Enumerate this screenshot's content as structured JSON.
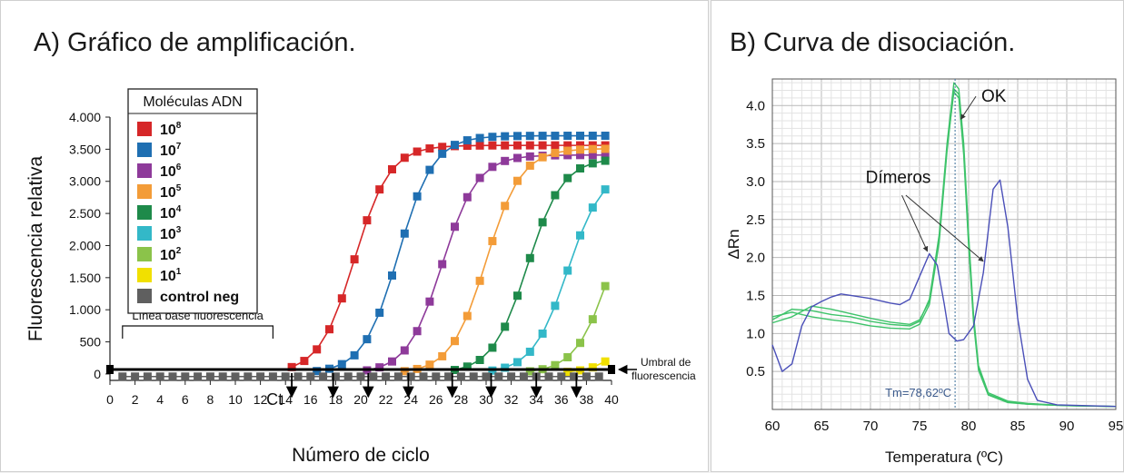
{
  "chart_data": [
    {
      "type": "line",
      "title": "A) Gráfico de amplificación.",
      "xlabel": "Número de ciclo",
      "ylabel": "Fluorescencia relativa",
      "xlim": [
        0,
        40
      ],
      "ylim": [
        -100,
        4000
      ],
      "xticks": [
        "0",
        "2",
        "4",
        "6",
        "8",
        "10",
        "12",
        "14",
        "16",
        "18",
        "20",
        "22",
        "24",
        "26",
        "28",
        "30",
        "32",
        "34",
        "36",
        "38",
        "40"
      ],
      "yticks": [
        {
          "v": 0,
          "label": "0"
        },
        {
          "v": 500,
          "label": "500"
        },
        {
          "v": 1000,
          "label": "1.000"
        },
        {
          "v": 1500,
          "label": "1.500"
        },
        {
          "v": 2000,
          "label": "2.000"
        },
        {
          "v": 2500,
          "label": "2.500"
        },
        {
          "v": 3000,
          "label": "3.000"
        },
        {
          "v": 3500,
          "label": "3.500"
        },
        {
          "v": 4000,
          "label": "4.000"
        }
      ],
      "legend": {
        "title": "Moléculas ADN",
        "placement": "top-left",
        "items": [
          {
            "base": "10",
            "exp": "8",
            "color": "#d62728"
          },
          {
            "base": "10",
            "exp": "7",
            "color": "#1f6fb2"
          },
          {
            "base": "10",
            "exp": "6",
            "color": "#8e3a9a"
          },
          {
            "base": "10",
            "exp": "5",
            "color": "#f39c38"
          },
          {
            "base": "10",
            "exp": "4",
            "color": "#1e8a4a"
          },
          {
            "base": "10",
            "exp": "3",
            "color": "#33b8c8"
          },
          {
            "base": "10",
            "exp": "2",
            "color": "#8bc34a"
          },
          {
            "base": "10",
            "exp": "1",
            "color": "#f1e000"
          },
          {
            "base": "control neg",
            "exp": "",
            "color": "#5f5f5f"
          }
        ]
      },
      "series": [
        {
          "name": "10^8",
          "color": "#d62728",
          "midpoint": 19.5,
          "plateau": 3550,
          "x_min": 14.5,
          "x_max": 39.5
        },
        {
          "name": "10^7",
          "color": "#1f6fb2",
          "midpoint": 23.0,
          "plateau": 3700,
          "x_min": 16.5,
          "x_max": 39.5
        },
        {
          "name": "10^6",
          "color": "#8e3a9a",
          "midpoint": 26.5,
          "plateau": 3400,
          "x_min": 20.5,
          "x_max": 39.5
        },
        {
          "name": "10^5",
          "color": "#f39c38",
          "midpoint": 30.0,
          "plateau": 3500,
          "x_min": 23.5,
          "x_max": 39.5
        },
        {
          "name": "10^4",
          "color": "#1e8a4a",
          "midpoint": 33.3,
          "plateau": 3350,
          "x_min": 27.5,
          "x_max": 39.5
        },
        {
          "name": "10^3",
          "color": "#33b8c8",
          "midpoint": 36.5,
          "plateau": 3200,
          "x_min": 30.5,
          "x_max": 39.5
        },
        {
          "name": "10^2",
          "color": "#8bc34a",
          "midpoint": 40.0,
          "plateau": 3300,
          "x_min": 33.5,
          "x_max": 39.5
        },
        {
          "name": "10^1",
          "color": "#f1e000",
          "midpoint": 43.5,
          "plateau": 3400,
          "x_min": 36.5,
          "x_max": 39.5
        },
        {
          "name": "control neg",
          "color": "#5f5f5f",
          "constant": -40,
          "x_min": 1,
          "x_max": 39.5
        }
      ],
      "threshold": {
        "value": 70,
        "label_line1": "Umbral de",
        "label_line2": "fluorescencia"
      },
      "baseline": {
        "x_start": 1,
        "x_end": 13,
        "label": "Línea base fluorescencia"
      },
      "ct_label": "Ct",
      "ct_values": [
        14.5,
        17.8,
        20.6,
        23.8,
        27.3,
        30.4,
        34.0,
        37.2
      ]
    },
    {
      "type": "line",
      "title": "B) Curva de disociación.",
      "xlabel": "Temperatura (ºC)",
      "ylabel": "ΔRn",
      "xlim": [
        60,
        95
      ],
      "ylim": [
        0,
        4.35
      ],
      "xticks": [
        "60",
        "65",
        "70",
        "75",
        "80",
        "85",
        "90",
        "95"
      ],
      "yticks": [
        {
          "v": 0.5,
          "label": "0.5"
        },
        {
          "v": 1.0,
          "label": "1.0"
        },
        {
          "v": 1.5,
          "label": "1.5"
        },
        {
          "v": 2.0,
          "label": "2.0"
        },
        {
          "v": 2.5,
          "label": "2.5"
        },
        {
          "v": 3.0,
          "label": "3.0"
        },
        {
          "v": 3.5,
          "label": "3.5"
        },
        {
          "v": 4.0,
          "label": "4.0"
        }
      ],
      "grid": true,
      "tm_line": 78.62,
      "tm_label": "Tm=78,62ºC",
      "annotations": [
        {
          "text": "OK",
          "x": 81.3,
          "y": 4.05
        },
        {
          "text": "Dímeros",
          "x": 69.5,
          "y": 2.98
        }
      ],
      "series": [
        {
          "name": "ok-1",
          "color": "#3ec36a",
          "points": [
            [
              60,
              1.22
            ],
            [
              62,
              1.28
            ],
            [
              64,
              1.22
            ],
            [
              66,
              1.18
            ],
            [
              68,
              1.15
            ],
            [
              70,
              1.1
            ],
            [
              72,
              1.07
            ],
            [
              74,
              1.06
            ],
            [
              75,
              1.12
            ],
            [
              76,
              1.38
            ],
            [
              77,
              2.2
            ],
            [
              77.8,
              3.4
            ],
            [
              78.5,
              4.22
            ],
            [
              79,
              4.15
            ],
            [
              79.5,
              3.4
            ],
            [
              80,
              2.2
            ],
            [
              80.5,
              1.2
            ],
            [
              81,
              0.55
            ],
            [
              82,
              0.2
            ],
            [
              84,
              0.1
            ],
            [
              86,
              0.07
            ],
            [
              90,
              0.05
            ],
            [
              95,
              0.04
            ]
          ]
        },
        {
          "name": "ok-2",
          "color": "#3ec36a",
          "points": [
            [
              60,
              1.18
            ],
            [
              62,
              1.32
            ],
            [
              64,
              1.3
            ],
            [
              66,
              1.25
            ],
            [
              68,
              1.22
            ],
            [
              70,
              1.16
            ],
            [
              72,
              1.12
            ],
            [
              74,
              1.1
            ],
            [
              75,
              1.16
            ],
            [
              76,
              1.45
            ],
            [
              77,
              2.3
            ],
            [
              77.8,
              3.5
            ],
            [
              78.5,
              4.3
            ],
            [
              79,
              4.22
            ],
            [
              79.5,
              3.5
            ],
            [
              80,
              2.3
            ],
            [
              80.5,
              1.25
            ],
            [
              81,
              0.58
            ],
            [
              82,
              0.22
            ],
            [
              84,
              0.11
            ],
            [
              86,
              0.08
            ],
            [
              90,
              0.05
            ],
            [
              95,
              0.04
            ]
          ]
        },
        {
          "name": "ok-3",
          "color": "#3ec36a",
          "points": [
            [
              60,
              1.14
            ],
            [
              62,
              1.22
            ],
            [
              64,
              1.36
            ],
            [
              66,
              1.32
            ],
            [
              68,
              1.26
            ],
            [
              70,
              1.2
            ],
            [
              72,
              1.15
            ],
            [
              74,
              1.12
            ],
            [
              75,
              1.18
            ],
            [
              76,
              1.42
            ],
            [
              77,
              2.25
            ],
            [
              77.8,
              3.45
            ],
            [
              78.5,
              4.18
            ],
            [
              79,
              4.1
            ],
            [
              79.5,
              3.35
            ],
            [
              80,
              2.15
            ],
            [
              80.5,
              1.15
            ],
            [
              81,
              0.52
            ],
            [
              82,
              0.19
            ],
            [
              84,
              0.09
            ],
            [
              86,
              0.07
            ],
            [
              90,
              0.05
            ],
            [
              95,
              0.04
            ]
          ]
        },
        {
          "name": "dimer",
          "color": "#4a4fb8",
          "points": [
            [
              60,
              0.85
            ],
            [
              61,
              0.5
            ],
            [
              62,
              0.6
            ],
            [
              63,
              1.1
            ],
            [
              64,
              1.35
            ],
            [
              65,
              1.42
            ],
            [
              66,
              1.48
            ],
            [
              67,
              1.52
            ],
            [
              68,
              1.5
            ],
            [
              70,
              1.46
            ],
            [
              72,
              1.4
            ],
            [
              73,
              1.38
            ],
            [
              74,
              1.45
            ],
            [
              75,
              1.75
            ],
            [
              76,
              2.05
            ],
            [
              76.8,
              1.9
            ],
            [
              77.5,
              1.4
            ],
            [
              78,
              1.0
            ],
            [
              78.8,
              0.9
            ],
            [
              79.5,
              0.92
            ],
            [
              80.5,
              1.1
            ],
            [
              81.5,
              1.8
            ],
            [
              82.5,
              2.9
            ],
            [
              83.2,
              3.02
            ],
            [
              84,
              2.4
            ],
            [
              85,
              1.2
            ],
            [
              86,
              0.4
            ],
            [
              87,
              0.12
            ],
            [
              89,
              0.06
            ],
            [
              92,
              0.05
            ],
            [
              95,
              0.04
            ]
          ]
        }
      ]
    }
  ]
}
